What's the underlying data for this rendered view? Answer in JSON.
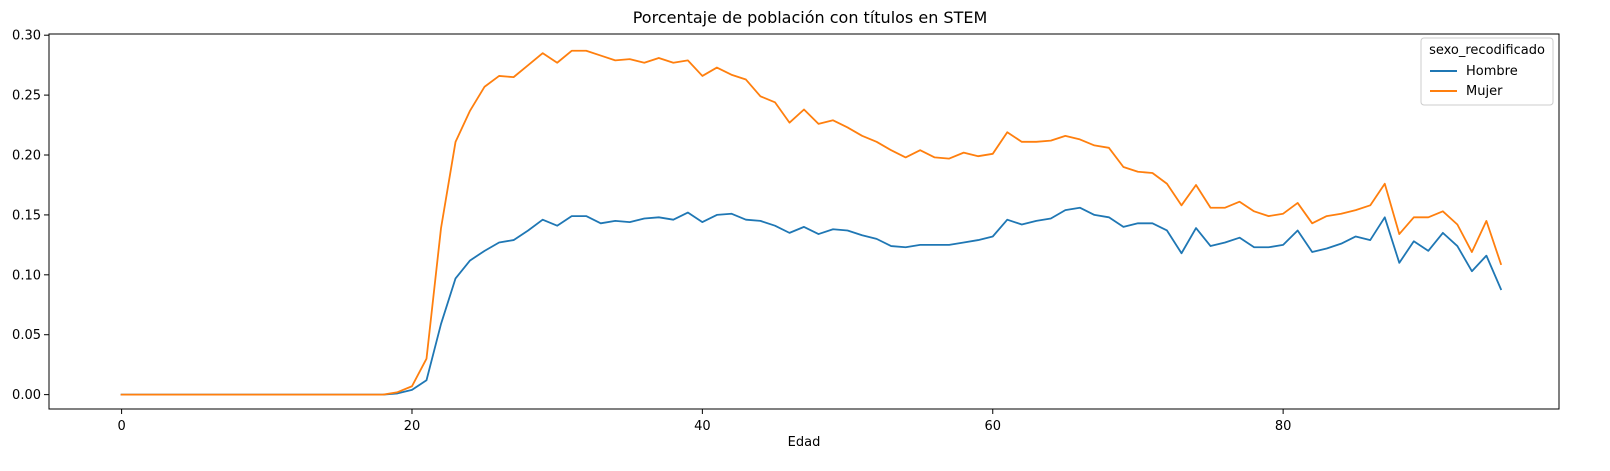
{
  "chart_data": {
    "type": "line",
    "title": "Porcentaje de población con títulos en STEM",
    "xlabel": "Edad",
    "ylabel": "",
    "xlim": [
      -5,
      99
    ],
    "ylim": [
      -0.012,
      0.301
    ],
    "xticks": [
      0,
      20,
      40,
      60,
      80
    ],
    "yticks": [
      0.0,
      0.05,
      0.1,
      0.15,
      0.2,
      0.25,
      0.3
    ],
    "ytick_labels": [
      "0.00",
      "0.05",
      "0.10",
      "0.15",
      "0.20",
      "0.25",
      "0.30"
    ],
    "legend": {
      "title": "sexo_recodificado",
      "placement": "top-right"
    },
    "x": [
      0,
      1,
      2,
      3,
      4,
      5,
      6,
      7,
      8,
      9,
      10,
      11,
      12,
      13,
      14,
      15,
      16,
      17,
      18,
      19,
      20,
      21,
      22,
      23,
      24,
      25,
      26,
      27,
      28,
      29,
      30,
      31,
      32,
      33,
      34,
      35,
      36,
      37,
      38,
      39,
      40,
      41,
      42,
      43,
      44,
      45,
      46,
      47,
      48,
      49,
      50,
      51,
      52,
      53,
      54,
      55,
      56,
      57,
      58,
      59,
      60,
      61,
      62,
      63,
      64,
      65,
      66,
      67,
      68,
      69,
      70,
      71,
      72,
      73,
      74,
      75,
      76,
      77,
      78,
      79,
      80,
      81,
      82,
      83,
      84,
      85,
      86,
      87,
      88,
      89,
      90,
      91,
      92,
      93,
      94,
      95
    ],
    "series": [
      {
        "name": "Hombre",
        "color": "#1f77b4",
        "values": [
          0,
          0,
          0,
          0,
          0,
          0,
          0,
          0,
          0,
          0,
          0,
          0,
          0,
          0,
          0,
          0,
          0,
          0,
          0,
          0.001,
          0.004,
          0.012,
          0.059,
          0.097,
          0.112,
          0.12,
          0.127,
          0.129,
          0.137,
          0.146,
          0.141,
          0.149,
          0.149,
          0.143,
          0.145,
          0.144,
          0.147,
          0.148,
          0.146,
          0.152,
          0.144,
          0.15,
          0.151,
          0.146,
          0.145,
          0.141,
          0.135,
          0.14,
          0.134,
          0.138,
          0.137,
          0.133,
          0.13,
          0.124,
          0.123,
          0.125,
          0.125,
          0.125,
          0.127,
          0.129,
          0.132,
          0.146,
          0.142,
          0.145,
          0.147,
          0.154,
          0.156,
          0.15,
          0.148,
          0.14,
          0.143,
          0.143,
          0.137,
          0.118,
          0.139,
          0.124,
          0.127,
          0.131,
          0.123,
          0.123,
          0.125,
          0.137,
          0.119,
          0.122,
          0.126,
          0.132,
          0.129,
          0.148,
          0.11,
          0.128,
          0.12,
          0.135,
          0.124,
          0.103,
          0.116,
          0.088
        ]
      },
      {
        "name": "Mujer",
        "color": "#ff7f0e",
        "values": [
          0,
          0,
          0,
          0,
          0,
          0,
          0,
          0,
          0,
          0,
          0,
          0,
          0,
          0,
          0,
          0,
          0,
          0,
          0,
          0.002,
          0.007,
          0.03,
          0.139,
          0.211,
          0.237,
          0.257,
          0.266,
          0.265,
          0.275,
          0.285,
          0.277,
          0.287,
          0.287,
          0.283,
          0.279,
          0.28,
          0.277,
          0.281,
          0.277,
          0.279,
          0.266,
          0.273,
          0.267,
          0.263,
          0.249,
          0.244,
          0.227,
          0.238,
          0.226,
          0.229,
          0.223,
          0.216,
          0.211,
          0.204,
          0.198,
          0.204,
          0.198,
          0.197,
          0.202,
          0.199,
          0.201,
          0.219,
          0.211,
          0.211,
          0.212,
          0.216,
          0.213,
          0.208,
          0.206,
          0.19,
          0.186,
          0.185,
          0.176,
          0.158,
          0.175,
          0.156,
          0.156,
          0.161,
          0.153,
          0.149,
          0.151,
          0.16,
          0.143,
          0.149,
          0.151,
          0.154,
          0.158,
          0.176,
          0.134,
          0.148,
          0.148,
          0.153,
          0.142,
          0.119,
          0.145,
          0.109
        ]
      }
    ]
  }
}
